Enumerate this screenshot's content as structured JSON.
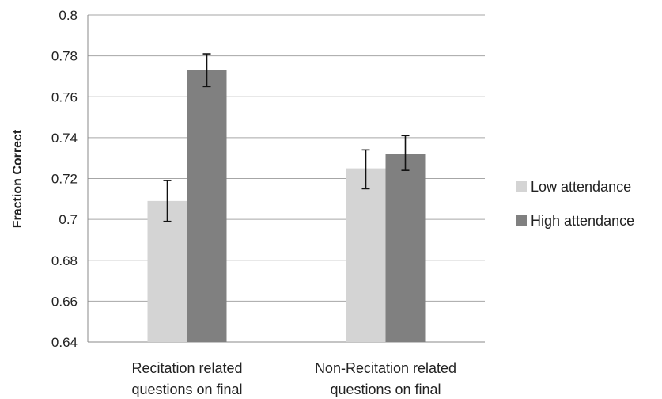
{
  "chart_data": {
    "type": "bar",
    "categories": [
      [
        "Recitation related",
        "questions on final"
      ],
      [
        "Non-Recitation related",
        "questions on final"
      ]
    ],
    "series": [
      {
        "name": "Low attendance",
        "color": "#d4d4d4",
        "values": [
          0.709,
          0.725
        ],
        "errors": [
          [
            0.699,
            0.719
          ],
          [
            0.715,
            0.734
          ]
        ]
      },
      {
        "name": "High attendance",
        "color": "#808080",
        "values": [
          0.773,
          0.732
        ],
        "errors": [
          [
            0.765,
            0.781
          ],
          [
            0.724,
            0.741
          ]
        ]
      }
    ],
    "ylabel": "Fraction Correct",
    "xlabel": "",
    "ylim": [
      0.64,
      0.8
    ],
    "yticks": [
      0.64,
      0.66,
      0.68,
      0.7,
      0.72,
      0.74,
      0.76,
      0.78,
      0.8
    ],
    "ytick_labels": [
      "0.64",
      "0.66",
      "0.68",
      "0.7",
      "0.72",
      "0.74",
      "0.76",
      "0.78",
      "0.8"
    ],
    "grid": true,
    "legend_position": "right"
  }
}
